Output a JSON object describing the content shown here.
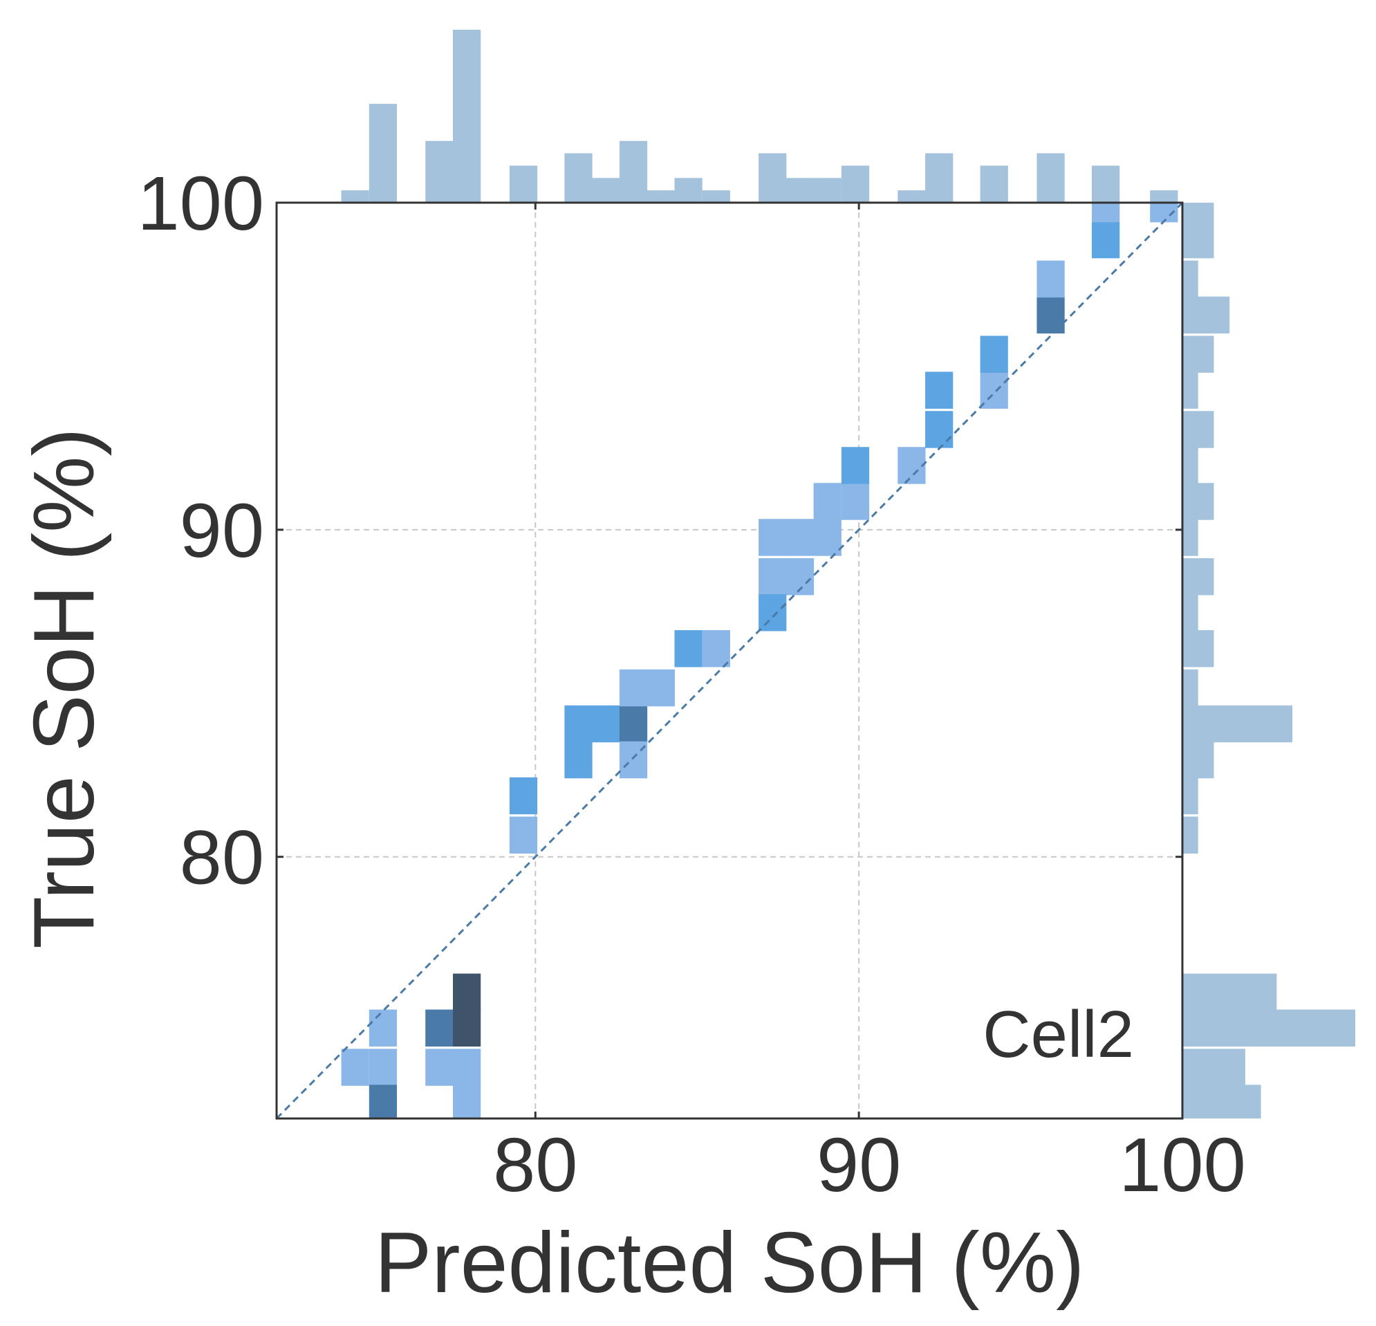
{
  "chart_data": {
    "type": "heatmap",
    "title": "",
    "xlabel": "Predicted SoH (%)",
    "ylabel": "True SoH (%)",
    "annotation": "Cell2",
    "xlim": [
      72,
      100
    ],
    "ylim": [
      72,
      100
    ],
    "x_ticks": [
      80,
      90,
      100
    ],
    "y_ticks": [
      80,
      90,
      100
    ],
    "grid": true,
    "identity_line": true,
    "bin_width": 0.86,
    "bin_height": 1.13,
    "colors": {
      "light": "#8bb6e8",
      "medium": "#5ca4e2",
      "dark": "#4a7aa7",
      "darkest": "#3f536b",
      "marginal": "#a5c2dc",
      "identity": "#4a7aa7",
      "grid": "#c8c8c8",
      "axis": "#333333"
    },
    "cells": [
      {
        "x": 74.0,
        "y": 73.0,
        "level": "light"
      },
      {
        "x": 74.86,
        "y": 73.0,
        "level": "light"
      },
      {
        "x": 74.86,
        "y": 74.2,
        "level": "light"
      },
      {
        "x": 74.86,
        "y": 71.9,
        "level": "dark"
      },
      {
        "x": 76.6,
        "y": 74.2,
        "level": "dark"
      },
      {
        "x": 76.6,
        "y": 73.0,
        "level": "light"
      },
      {
        "x": 77.45,
        "y": 74.2,
        "level": "darkest"
      },
      {
        "x": 77.45,
        "y": 75.3,
        "level": "darkest"
      },
      {
        "x": 77.45,
        "y": 73.0,
        "level": "light"
      },
      {
        "x": 77.45,
        "y": 71.9,
        "level": "light"
      },
      {
        "x": 79.2,
        "y": 81.3,
        "level": "medium"
      },
      {
        "x": 79.2,
        "y": 80.1,
        "level": "light"
      },
      {
        "x": 80.9,
        "y": 83.5,
        "level": "medium"
      },
      {
        "x": 81.75,
        "y": 83.5,
        "level": "medium"
      },
      {
        "x": 80.9,
        "y": 82.4,
        "level": "medium"
      },
      {
        "x": 82.6,
        "y": 83.5,
        "level": "dark"
      },
      {
        "x": 82.6,
        "y": 82.4,
        "level": "light"
      },
      {
        "x": 82.6,
        "y": 84.6,
        "level": "light"
      },
      {
        "x": 83.45,
        "y": 84.6,
        "level": "light"
      },
      {
        "x": 84.3,
        "y": 85.8,
        "level": "medium"
      },
      {
        "x": 85.16,
        "y": 85.8,
        "level": "light"
      },
      {
        "x": 86.9,
        "y": 88.0,
        "level": "light"
      },
      {
        "x": 86.9,
        "y": 89.2,
        "level": "light"
      },
      {
        "x": 87.75,
        "y": 88.0,
        "level": "light"
      },
      {
        "x": 87.75,
        "y": 89.2,
        "level": "light"
      },
      {
        "x": 86.9,
        "y": 86.9,
        "level": "medium"
      },
      {
        "x": 88.6,
        "y": 89.2,
        "level": "light"
      },
      {
        "x": 88.6,
        "y": 90.3,
        "level": "light"
      },
      {
        "x": 89.46,
        "y": 90.3,
        "level": "light"
      },
      {
        "x": 89.46,
        "y": 91.4,
        "level": "medium"
      },
      {
        "x": 91.2,
        "y": 91.4,
        "level": "light"
      },
      {
        "x": 92.05,
        "y": 92.5,
        "level": "medium"
      },
      {
        "x": 92.05,
        "y": 93.7,
        "level": "medium"
      },
      {
        "x": 93.75,
        "y": 93.7,
        "level": "light"
      },
      {
        "x": 93.75,
        "y": 94.8,
        "level": "medium"
      },
      {
        "x": 95.5,
        "y": 96.0,
        "level": "dark"
      },
      {
        "x": 95.5,
        "y": 97.1,
        "level": "light"
      },
      {
        "x": 97.2,
        "y": 98.3,
        "level": "medium"
      },
      {
        "x": 97.2,
        "y": 99.4,
        "level": "light"
      },
      {
        "x": 99.0,
        "y": 99.4,
        "level": "light"
      }
    ],
    "x_marginal": [
      {
        "x": 74.0,
        "count": 0.5
      },
      {
        "x": 74.86,
        "count": 4
      },
      {
        "x": 76.6,
        "count": 2.5
      },
      {
        "x": 77.45,
        "count": 7
      },
      {
        "x": 79.2,
        "count": 1.5
      },
      {
        "x": 80.9,
        "count": 2
      },
      {
        "x": 81.75,
        "count": 1
      },
      {
        "x": 82.6,
        "count": 2.5
      },
      {
        "x": 83.45,
        "count": 0.5
      },
      {
        "x": 84.3,
        "count": 1
      },
      {
        "x": 85.16,
        "count": 0.5
      },
      {
        "x": 86.9,
        "count": 2
      },
      {
        "x": 87.75,
        "count": 1
      },
      {
        "x": 88.6,
        "count": 1
      },
      {
        "x": 89.46,
        "count": 1.5
      },
      {
        "x": 91.2,
        "count": 0.5
      },
      {
        "x": 92.05,
        "count": 2
      },
      {
        "x": 93.75,
        "count": 1.5
      },
      {
        "x": 95.5,
        "count": 2
      },
      {
        "x": 97.2,
        "count": 1.5
      },
      {
        "x": 99.0,
        "count": 0.5
      }
    ],
    "y_marginal": [
      {
        "y": 99.4,
        "count": 1
      },
      {
        "y": 98.3,
        "count": 1
      },
      {
        "y": 97.1,
        "count": 0.5
      },
      {
        "y": 96.0,
        "count": 1.5
      },
      {
        "y": 94.8,
        "count": 1
      },
      {
        "y": 93.7,
        "count": 0.5
      },
      {
        "y": 92.5,
        "count": 1
      },
      {
        "y": 91.4,
        "count": 0.5
      },
      {
        "y": 90.3,
        "count": 1
      },
      {
        "y": 89.2,
        "count": 0.5
      },
      {
        "y": 88.0,
        "count": 1
      },
      {
        "y": 86.9,
        "count": 0.5
      },
      {
        "y": 85.8,
        "count": 1
      },
      {
        "y": 84.6,
        "count": 0.5
      },
      {
        "y": 83.5,
        "count": 3.5
      },
      {
        "y": 82.4,
        "count": 1
      },
      {
        "y": 81.3,
        "count": 0.5
      },
      {
        "y": 80.1,
        "count": 0.5
      },
      {
        "y": 75.3,
        "count": 3
      },
      {
        "y": 74.2,
        "count": 5.5
      },
      {
        "y": 73.0,
        "count": 2
      },
      {
        "y": 71.9,
        "count": 2.5
      }
    ]
  }
}
